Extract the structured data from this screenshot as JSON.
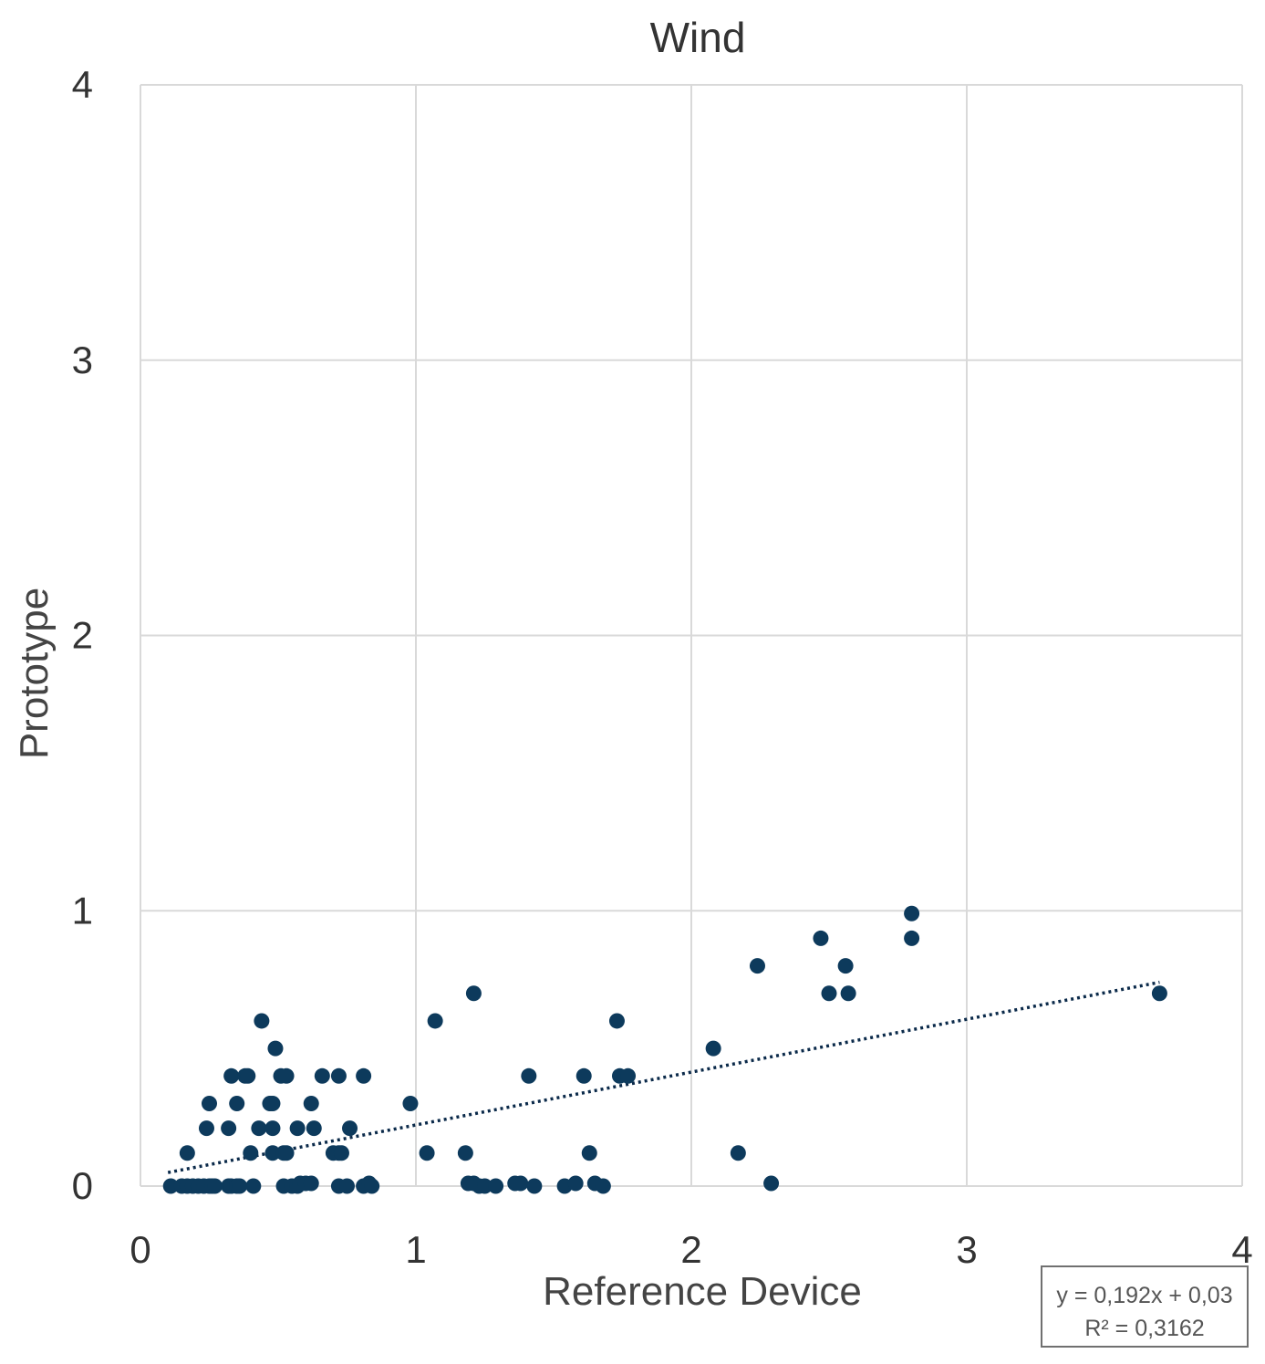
{
  "chart_data": {
    "type": "scatter",
    "title": "Wind",
    "xlabel": "Reference Device",
    "ylabel": "Prototype",
    "xlim": [
      0,
      4
    ],
    "ylim": [
      0,
      4
    ],
    "x_ticks": [
      "0",
      "1",
      "2",
      "3",
      "4"
    ],
    "y_ticks": [
      "0",
      "1",
      "2",
      "3",
      "4"
    ],
    "grid": true,
    "marker_color": "#0d3a5c",
    "trendline": {
      "style": "dotted",
      "slope": 0.192,
      "intercept": 0.03,
      "x_range": [
        0.1,
        3.7
      ],
      "equation_label": "y = 0,192x + 0,03",
      "r2_label": "R² = 0,3162"
    },
    "series": [
      {
        "name": "Wind",
        "points": [
          [
            0.11,
            0.0
          ],
          [
            0.15,
            0.0
          ],
          [
            0.17,
            0.0
          ],
          [
            0.19,
            0.0
          ],
          [
            0.21,
            0.0
          ],
          [
            0.23,
            0.0
          ],
          [
            0.25,
            0.0
          ],
          [
            0.26,
            0.0
          ],
          [
            0.27,
            0.0
          ],
          [
            0.32,
            0.0
          ],
          [
            0.33,
            0.0
          ],
          [
            0.35,
            0.0
          ],
          [
            0.36,
            0.0
          ],
          [
            0.41,
            0.0
          ],
          [
            0.52,
            0.0
          ],
          [
            0.55,
            0.0
          ],
          [
            0.57,
            0.0
          ],
          [
            0.58,
            0.01
          ],
          [
            0.6,
            0.01
          ],
          [
            0.62,
            0.01
          ],
          [
            0.72,
            0.0
          ],
          [
            0.75,
            0.0
          ],
          [
            0.81,
            0.0
          ],
          [
            0.83,
            0.01
          ],
          [
            0.84,
            0.0
          ],
          [
            1.19,
            0.01
          ],
          [
            1.21,
            0.01
          ],
          [
            1.23,
            0.0
          ],
          [
            1.25,
            0.0
          ],
          [
            1.29,
            0.0
          ],
          [
            1.36,
            0.01
          ],
          [
            1.38,
            0.01
          ],
          [
            1.43,
            0.0
          ],
          [
            1.54,
            0.0
          ],
          [
            1.58,
            0.01
          ],
          [
            1.65,
            0.01
          ],
          [
            1.68,
            0.0
          ],
          [
            2.29,
            0.01
          ],
          [
            0.17,
            0.12
          ],
          [
            0.4,
            0.12
          ],
          [
            0.48,
            0.12
          ],
          [
            0.52,
            0.12
          ],
          [
            0.53,
            0.12
          ],
          [
            0.7,
            0.12
          ],
          [
            0.72,
            0.12
          ],
          [
            0.73,
            0.12
          ],
          [
            1.04,
            0.12
          ],
          [
            1.18,
            0.12
          ],
          [
            1.63,
            0.12
          ],
          [
            2.17,
            0.12
          ],
          [
            0.24,
            0.21
          ],
          [
            0.32,
            0.21
          ],
          [
            0.43,
            0.21
          ],
          [
            0.48,
            0.21
          ],
          [
            0.57,
            0.21
          ],
          [
            0.63,
            0.21
          ],
          [
            0.76,
            0.21
          ],
          [
            0.25,
            0.3
          ],
          [
            0.35,
            0.3
          ],
          [
            0.47,
            0.3
          ],
          [
            0.48,
            0.3
          ],
          [
            0.62,
            0.3
          ],
          [
            0.98,
            0.3
          ],
          [
            0.33,
            0.4
          ],
          [
            0.38,
            0.4
          ],
          [
            0.39,
            0.4
          ],
          [
            0.51,
            0.4
          ],
          [
            0.53,
            0.4
          ],
          [
            0.66,
            0.4
          ],
          [
            0.72,
            0.4
          ],
          [
            0.81,
            0.4
          ],
          [
            1.41,
            0.4
          ],
          [
            1.61,
            0.4
          ],
          [
            1.74,
            0.4
          ],
          [
            1.77,
            0.4
          ],
          [
            0.49,
            0.5
          ],
          [
            2.08,
            0.5
          ],
          [
            0.44,
            0.6
          ],
          [
            1.07,
            0.6
          ],
          [
            1.73,
            0.6
          ],
          [
            1.21,
            0.7
          ],
          [
            2.5,
            0.7
          ],
          [
            2.57,
            0.7
          ],
          [
            3.7,
            0.7
          ],
          [
            2.24,
            0.8
          ],
          [
            2.56,
            0.8
          ],
          [
            2.47,
            0.9
          ],
          [
            2.8,
            0.9
          ],
          [
            2.8,
            0.99
          ]
        ]
      }
    ]
  }
}
